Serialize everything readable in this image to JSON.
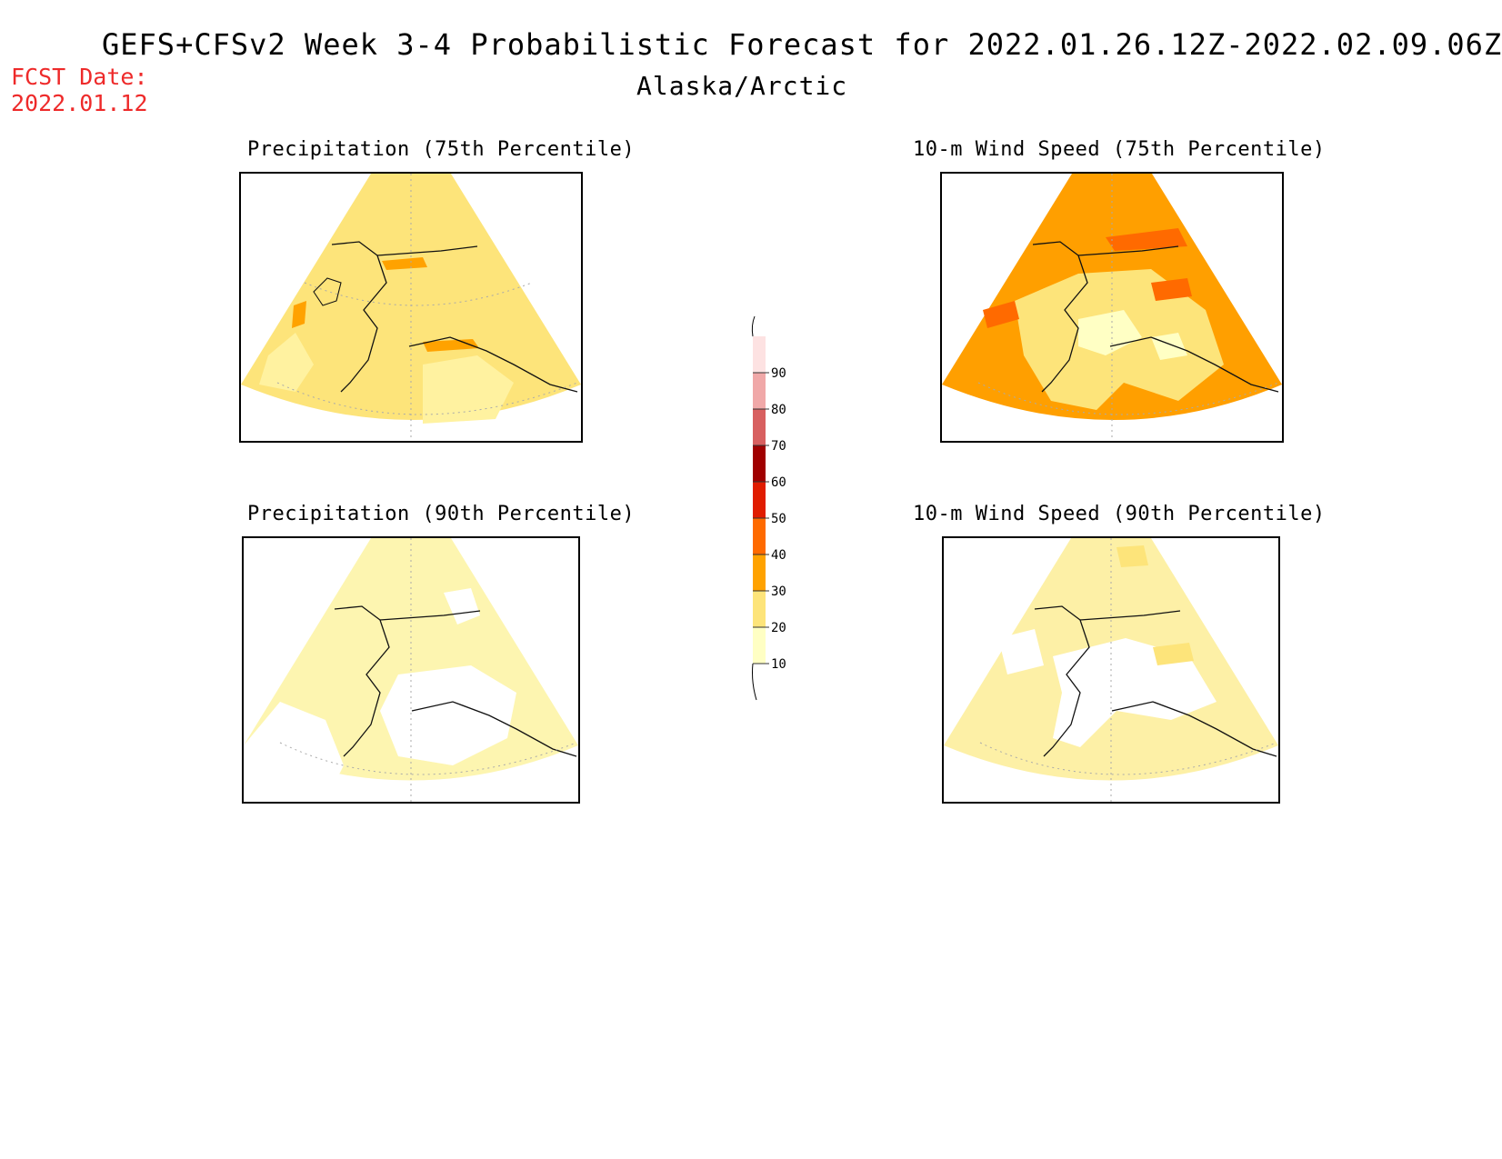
{
  "header": {
    "title": "GEFS+CFSv2 Week 3-4 Probabilistic Forecast for 2022.01.26.12Z-2022.02.09.06Z",
    "region": "Alaska/Arctic",
    "fcst_label": "FCST Date:",
    "fcst_date": "2022.01.12"
  },
  "panels": [
    {
      "id": "precip-75",
      "title": "Precipitation (75th Percentile)",
      "base_color": "#fde47a"
    },
    {
      "id": "wind-75",
      "title": "10-m Wind Speed (75th Percentile)",
      "base_color": "#ff9f00"
    },
    {
      "id": "precip-90",
      "title": "Precipitation (90th Percentile)",
      "base_color": "#fdf5b0"
    },
    {
      "id": "wind-90",
      "title": "10-m Wind Speed (90th Percentile)",
      "base_color": "#fdf0a6"
    }
  ],
  "colorbar": {
    "levels": [
      "10",
      "20",
      "30",
      "40",
      "50",
      "60",
      "70",
      "80",
      "90"
    ],
    "colors": [
      "#ffffc4",
      "#fde47a",
      "#ffa200",
      "#ff6a00",
      "#e01c00",
      "#a00000",
      "#d86060",
      "#f0a8a8",
      "#fde2e2"
    ]
  }
}
